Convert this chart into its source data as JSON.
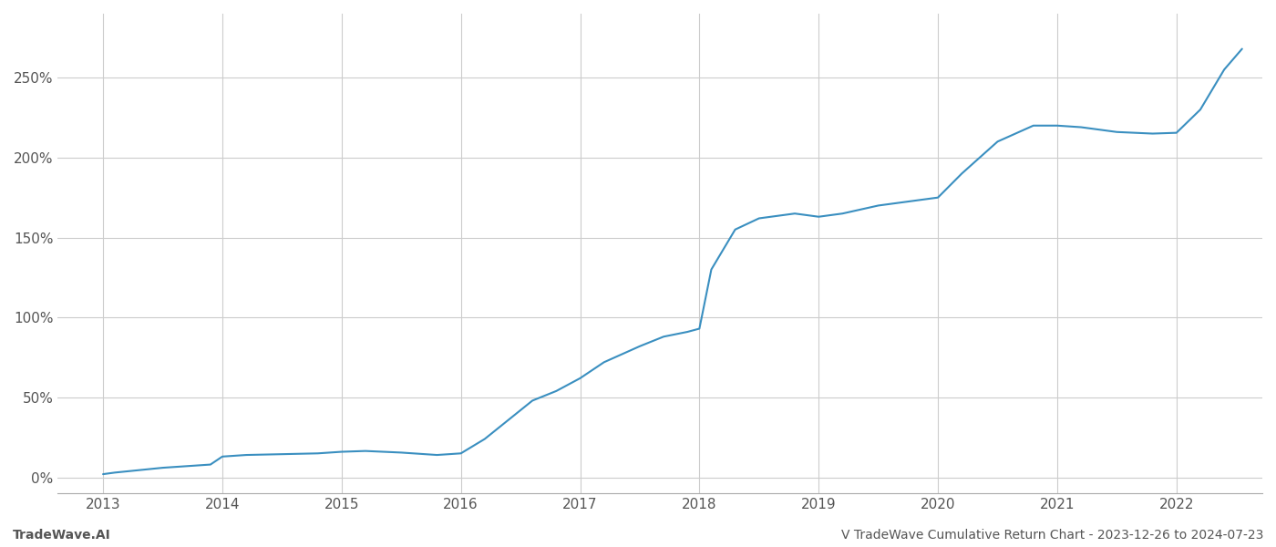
{
  "title": "",
  "footer_left": "TradeWave.AI",
  "footer_right": "V TradeWave Cumulative Return Chart - 2023-12-26 to 2024-07-23",
  "line_color": "#3a8fc0",
  "background_color": "#ffffff",
  "grid_color": "#cccccc",
  "x_years": [
    2013,
    2014,
    2015,
    2016,
    2017,
    2018,
    2019,
    2020,
    2021,
    2022
  ],
  "x_data": [
    2013.0,
    2013.1,
    2013.3,
    2013.5,
    2013.7,
    2013.9,
    2014.0,
    2014.2,
    2014.5,
    2014.8,
    2015.0,
    2015.2,
    2015.5,
    2015.8,
    2016.0,
    2016.2,
    2016.4,
    2016.6,
    2016.8,
    2017.0,
    2017.2,
    2017.5,
    2017.7,
    2017.9,
    2018.0,
    2018.1,
    2018.3,
    2018.5,
    2018.8,
    2019.0,
    2019.2,
    2019.5,
    2019.8,
    2020.0,
    2020.2,
    2020.5,
    2020.8,
    2021.0,
    2021.2,
    2021.5,
    2021.8,
    2022.0,
    2022.2,
    2022.4,
    2022.55
  ],
  "y_data": [
    2.0,
    3.0,
    4.5,
    6.0,
    7.0,
    8.0,
    13.0,
    14.0,
    14.5,
    15.0,
    16.0,
    16.5,
    15.5,
    14.0,
    15.0,
    24.0,
    36.0,
    48.0,
    54.0,
    62.0,
    72.0,
    82.0,
    88.0,
    91.0,
    93.0,
    130.0,
    155.0,
    162.0,
    165.0,
    163.0,
    165.0,
    170.0,
    173.0,
    175.0,
    190.0,
    210.0,
    220.0,
    220.0,
    219.0,
    216.0,
    215.0,
    215.5,
    230.0,
    255.0,
    268.0
  ],
  "ylim": [
    -10,
    290
  ],
  "yticks": [
    0,
    50,
    100,
    150,
    200,
    250
  ],
  "ytick_labels": [
    "0%",
    "50%",
    "100%",
    "150%",
    "200%",
    "250%"
  ],
  "line_width": 1.5,
  "font_color": "#555555",
  "footer_font_size": 10,
  "tick_font_size": 11
}
